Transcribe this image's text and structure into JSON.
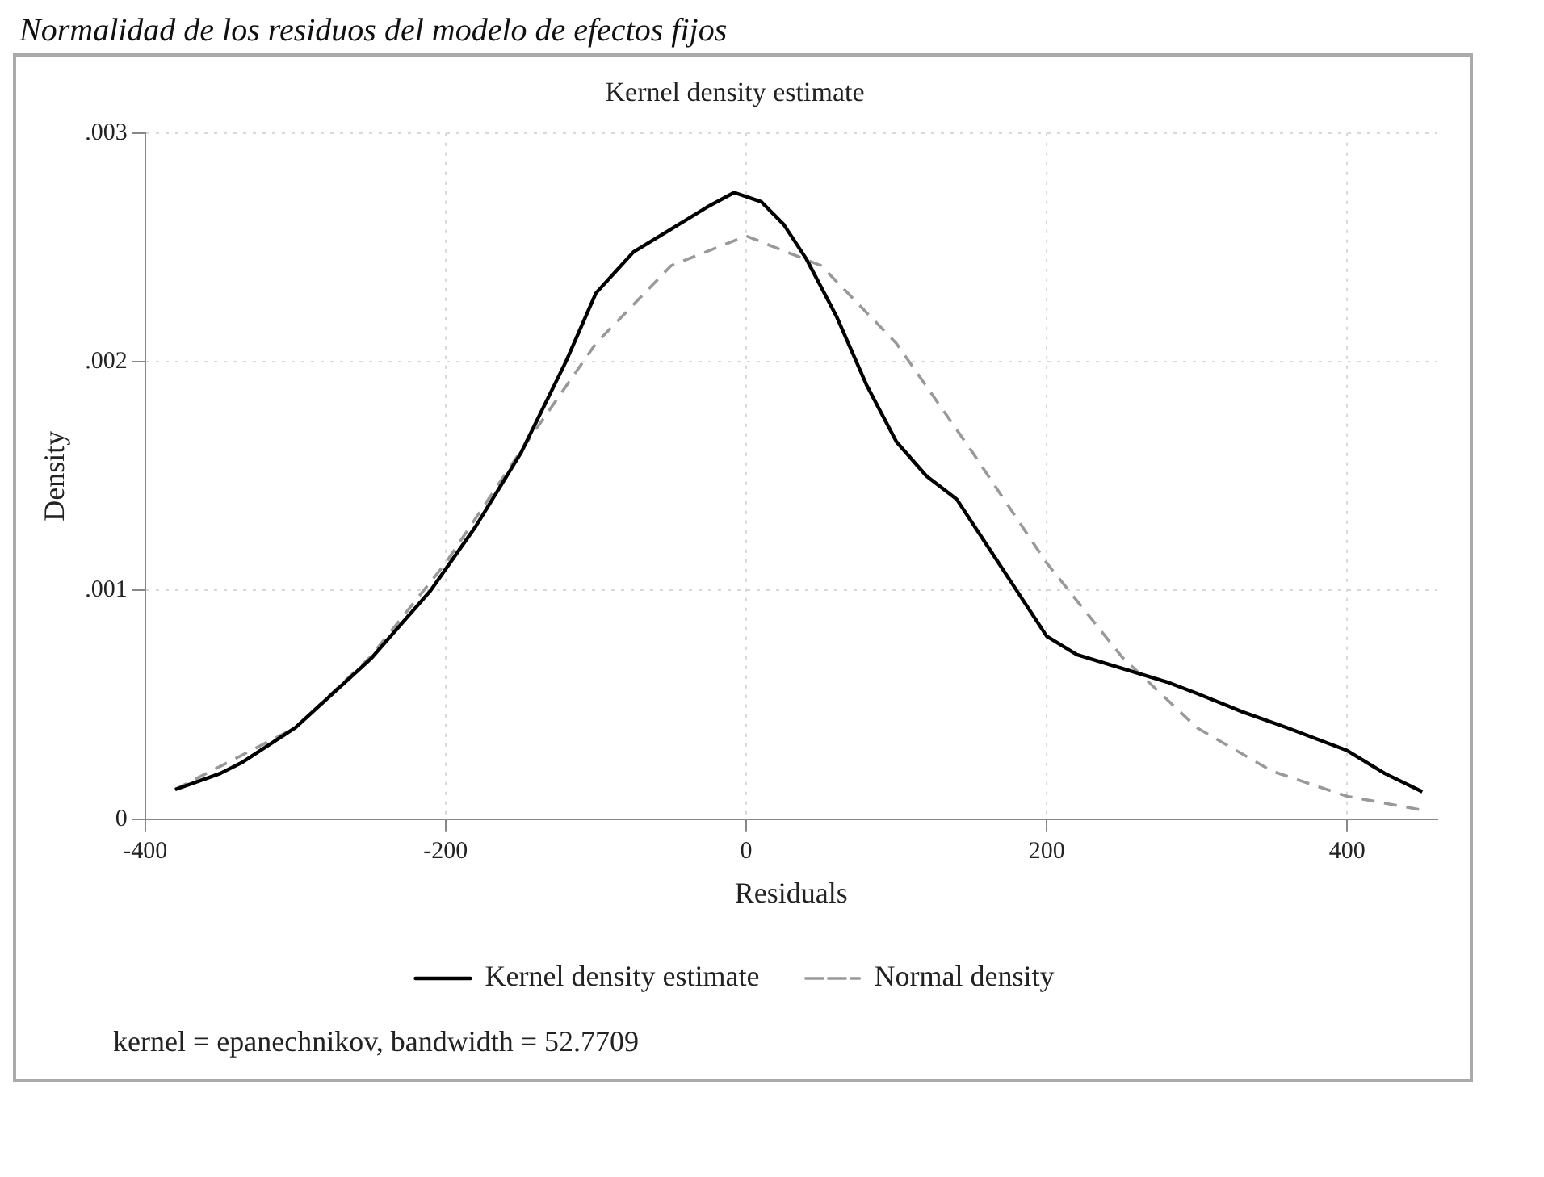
{
  "chart_data": {
    "type": "line",
    "title": "Kernel density estimate",
    "xlabel": "Residuals",
    "ylabel": "Density",
    "annotations": [
      "Normalidad de los residuos del modelo de efectos fijos",
      "kernel = epanechnikov, bandwidth = 52.7709"
    ],
    "xlim": [
      -400,
      460
    ],
    "xticks": [
      -400,
      -200,
      0,
      200,
      400
    ],
    "ylim": [
      0,
      0.003
    ],
    "yticks": [
      {
        "value": 0,
        "label": "0"
      },
      {
        "value": 0.001,
        "label": ".001"
      },
      {
        "value": 0.002,
        "label": ".002"
      },
      {
        "value": 0.003,
        "label": ".003"
      }
    ],
    "grid": true,
    "legend": "bottom",
    "marker": "none",
    "series": [
      {
        "name": "Kernel density estimate",
        "color": "#000000",
        "line_style": "solid",
        "x": [
          -380,
          -350,
          -335,
          -300,
          -250,
          -210,
          -180,
          -150,
          -120,
          -100,
          -75,
          -50,
          -25,
          -8,
          10,
          25,
          40,
          60,
          80,
          100,
          120,
          140,
          160,
          185,
          200,
          220,
          250,
          280,
          300,
          330,
          360,
          400,
          425,
          450
        ],
        "values": [
          0.00013,
          0.0002,
          0.00025,
          0.0004,
          0.0007,
          0.001,
          0.00128,
          0.0016,
          0.002,
          0.0023,
          0.00248,
          0.00258,
          0.00268,
          0.00274,
          0.0027,
          0.0026,
          0.00245,
          0.0022,
          0.0019,
          0.00165,
          0.0015,
          0.0014,
          0.0012,
          0.00095,
          0.0008,
          0.00072,
          0.00066,
          0.0006,
          0.00055,
          0.00047,
          0.0004,
          0.0003,
          0.0002,
          0.00012
        ]
      },
      {
        "name": "Normal density",
        "color": "#999999",
        "line_style": "dashed",
        "x": [
          -380,
          -300,
          -250,
          -200,
          -150,
          -100,
          -50,
          0,
          50,
          100,
          150,
          200,
          250,
          300,
          350,
          400,
          450
        ],
        "values": [
          0.00013,
          0.0004,
          0.00071,
          0.00112,
          0.00161,
          0.00208,
          0.00242,
          0.00255,
          0.00242,
          0.00208,
          0.00161,
          0.00112,
          0.00071,
          0.0004,
          0.00021,
          0.0001,
          4e-05
        ]
      }
    ]
  }
}
